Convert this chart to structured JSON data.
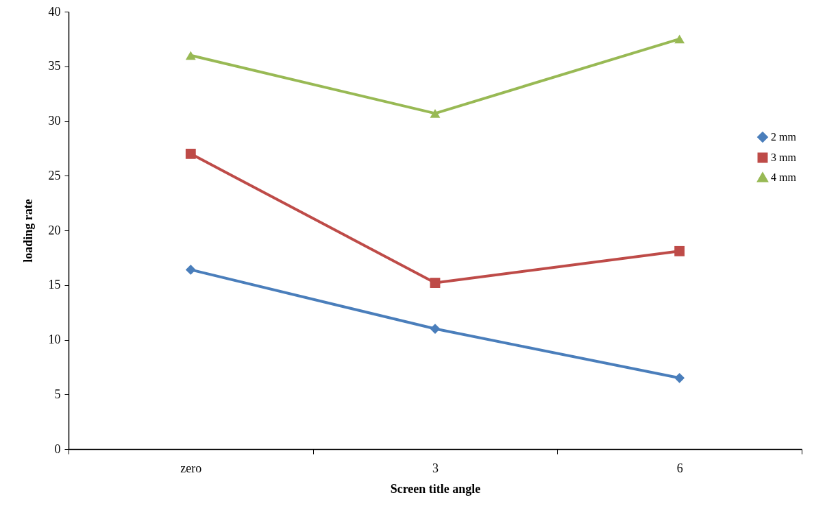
{
  "chart_data": {
    "type": "line",
    "xlabel": "Screen title angle",
    "ylabel": "loading rate",
    "categories": [
      "zero",
      "3",
      "6"
    ],
    "series": [
      {
        "name": "2 mm",
        "color": "#4a7ebb",
        "marker": "diamond",
        "values": [
          16.4,
          11.0,
          6.5
        ]
      },
      {
        "name": "3 mm",
        "color": "#be4b48",
        "marker": "square",
        "values": [
          27.0,
          15.2,
          18.1
        ]
      },
      {
        "name": "4 mm",
        "color": "#98b954",
        "marker": "triangle",
        "values": [
          36.0,
          30.7,
          37.5
        ]
      }
    ],
    "ylim": [
      0,
      40
    ],
    "yticks": [
      0,
      5,
      10,
      15,
      20,
      25,
      30,
      35,
      40
    ],
    "grid": false,
    "legend": "right",
    "line_style": "solid"
  }
}
